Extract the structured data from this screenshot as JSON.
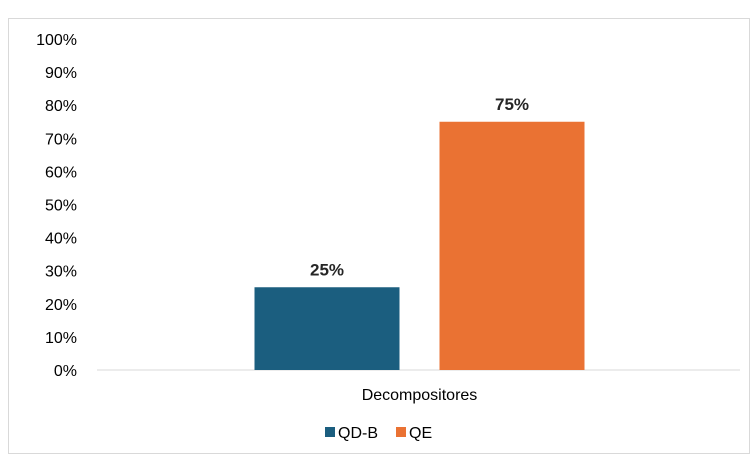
{
  "chart_data": {
    "type": "bar",
    "categories": [
      "Decompositores"
    ],
    "series": [
      {
        "name": "QD-B",
        "values": [
          25
        ],
        "color": "#1b5e7f",
        "label": "25%"
      },
      {
        "name": "QE",
        "values": [
          75
        ],
        "color": "#ea7233",
        "label": "75%"
      }
    ],
    "title": "",
    "xlabel": "",
    "ylabel": "",
    "ylim": [
      0,
      100
    ],
    "ytick_labels": [
      "0%",
      "10%",
      "20%",
      "30%",
      "40%",
      "50%",
      "60%",
      "70%",
      "80%",
      "90%",
      "100%"
    ],
    "grid": false,
    "legend": "bottom"
  }
}
